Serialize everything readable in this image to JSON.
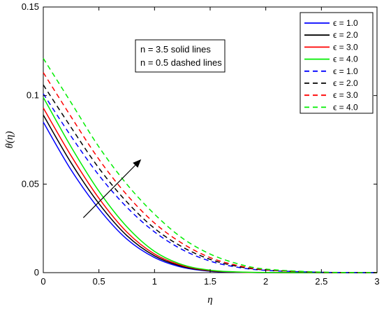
{
  "chart_data": {
    "type": "line",
    "xlabel": "η",
    "ylabel": "θ(η)",
    "xlim": [
      0,
      3
    ],
    "ylim": [
      0,
      0.15
    ],
    "xticks": [
      "0",
      "0.5",
      "1",
      "1.5",
      "2",
      "2.5",
      "3"
    ],
    "yticks": [
      "0",
      "0.05",
      "0.1",
      "0.15"
    ],
    "grid": false,
    "legend_position": "top-right",
    "annotation_lines": [
      "n = 3.5 solid lines",
      "n = 0.5 dashed lines"
    ],
    "arrow": {
      "from": [
        0.36,
        0.031
      ],
      "to": [
        0.88,
        0.064
      ]
    },
    "series": [
      {
        "name": "ϵ = 1.0",
        "color": "#0000ff",
        "dash": "solid",
        "x": [
          0,
          0.25,
          0.5,
          0.75,
          1.0,
          1.25,
          1.5,
          1.75,
          2.0,
          2.5,
          3.0
        ],
        "y": [
          0.085,
          0.058,
          0.036,
          0.019,
          0.0085,
          0.003,
          0.0008,
          0.0002,
          5e-05,
          0.0,
          0.0
        ]
      },
      {
        "name": "ϵ = 2.0",
        "color": "#000000",
        "dash": "solid",
        "x": [
          0,
          0.25,
          0.5,
          0.75,
          1.0,
          1.25,
          1.5,
          1.75,
          2.0,
          2.5,
          3.0
        ],
        "y": [
          0.089,
          0.062,
          0.039,
          0.021,
          0.0095,
          0.0035,
          0.001,
          0.00025,
          5e-05,
          0.0,
          0.0
        ]
      },
      {
        "name": "ϵ = 3.0",
        "color": "#ff0000",
        "dash": "solid",
        "x": [
          0,
          0.25,
          0.5,
          0.75,
          1.0,
          1.25,
          1.5,
          1.75,
          2.0,
          2.5,
          3.0
        ],
        "y": [
          0.093,
          0.066,
          0.042,
          0.023,
          0.0105,
          0.004,
          0.0012,
          0.0003,
          6e-05,
          0.0,
          0.0
        ]
      },
      {
        "name": "ϵ = 4.0",
        "color": "#00ee00",
        "dash": "solid",
        "x": [
          0,
          0.25,
          0.5,
          0.75,
          1.0,
          1.25,
          1.5,
          1.75,
          2.0,
          2.5,
          3.0
        ],
        "y": [
          0.099,
          0.071,
          0.046,
          0.026,
          0.012,
          0.0045,
          0.0014,
          0.0004,
          0.0001,
          0.0,
          0.0
        ]
      },
      {
        "name": "ϵ = 1.0",
        "color": "#0000ff",
        "dash": "dashed",
        "x": [
          0,
          0.25,
          0.5,
          0.75,
          1.0,
          1.25,
          1.5,
          1.75,
          2.0,
          2.5,
          3.0
        ],
        "y": [
          0.101,
          0.077,
          0.055,
          0.037,
          0.023,
          0.013,
          0.0065,
          0.003,
          0.0013,
          0.0002,
          0.0
        ]
      },
      {
        "name": "ϵ = 2.0",
        "color": "#000000",
        "dash": "dashed",
        "x": [
          0,
          0.25,
          0.5,
          0.75,
          1.0,
          1.25,
          1.5,
          1.75,
          2.0,
          2.5,
          3.0
        ],
        "y": [
          0.106,
          0.082,
          0.059,
          0.04,
          0.025,
          0.0145,
          0.0075,
          0.0035,
          0.0015,
          0.0002,
          0.0
        ]
      },
      {
        "name": "ϵ = 3.0",
        "color": "#ff0000",
        "dash": "dashed",
        "x": [
          0,
          0.25,
          0.5,
          0.75,
          1.0,
          1.25,
          1.5,
          1.75,
          2.0,
          2.5,
          3.0
        ],
        "y": [
          0.113,
          0.088,
          0.064,
          0.044,
          0.028,
          0.0165,
          0.0085,
          0.004,
          0.0017,
          0.0002,
          0.0
        ]
      },
      {
        "name": "ϵ = 4.0",
        "color": "#00ee00",
        "dash": "dashed",
        "x": [
          0,
          0.25,
          0.5,
          0.75,
          1.0,
          1.25,
          1.5,
          1.75,
          2.0,
          2.5,
          3.0
        ],
        "y": [
          0.121,
          0.096,
          0.071,
          0.05,
          0.033,
          0.0195,
          0.0105,
          0.005,
          0.002,
          0.0003,
          0.0
        ]
      }
    ]
  }
}
